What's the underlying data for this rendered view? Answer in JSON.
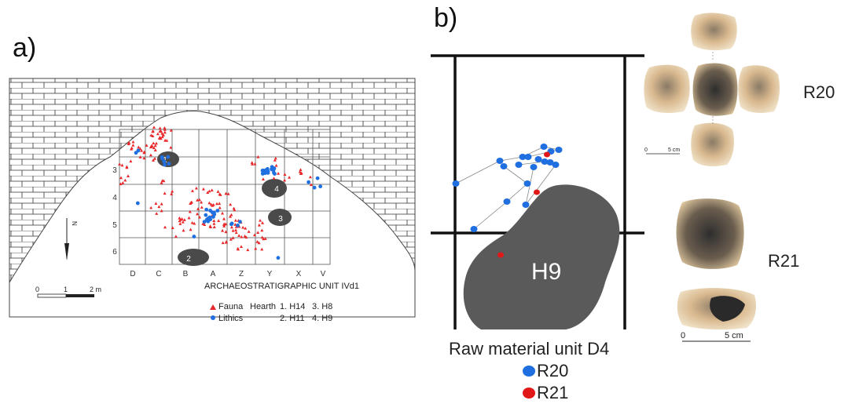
{
  "panel_a": {
    "label": "a)",
    "column_labels": [
      "D",
      "C",
      "B",
      "A",
      "Z",
      "Y",
      "X",
      "V"
    ],
    "row_labels": [
      "3",
      "4",
      "5",
      "6"
    ],
    "north_label": "N",
    "scale": {
      "zero": "0",
      "one": "1",
      "two": "2 m"
    },
    "legend": {
      "title": "ARCHAEOSTRATIGRAPHIC UNIT IVd1",
      "fauna": "Fauna",
      "lithics": "Lithics",
      "hearth": "Hearth",
      "h1": "1. H14",
      "h2": "2. H11",
      "h3": "3. H8",
      "h4": "4. H9"
    },
    "hearth_numbers": [
      "1",
      "2",
      "3",
      "4"
    ],
    "colors": {
      "fauna": "#e8282a",
      "lithics": "#1f6fe0",
      "hearth": "#4a4a4a"
    }
  },
  "panel_b": {
    "label": "b)",
    "hearth_label": "H9",
    "legend_title": "Raw material unit D4",
    "r20": "R20",
    "r21": "R21",
    "colors": {
      "r20": "#1f6fe0",
      "r21": "#e01818",
      "hearth": "#5a5a5a"
    }
  },
  "artifacts": {
    "r20_label": "R20",
    "r21_label": "R21",
    "scale_zero": "0",
    "scale_small": "5 cm",
    "scale_large": "5 cm"
  }
}
